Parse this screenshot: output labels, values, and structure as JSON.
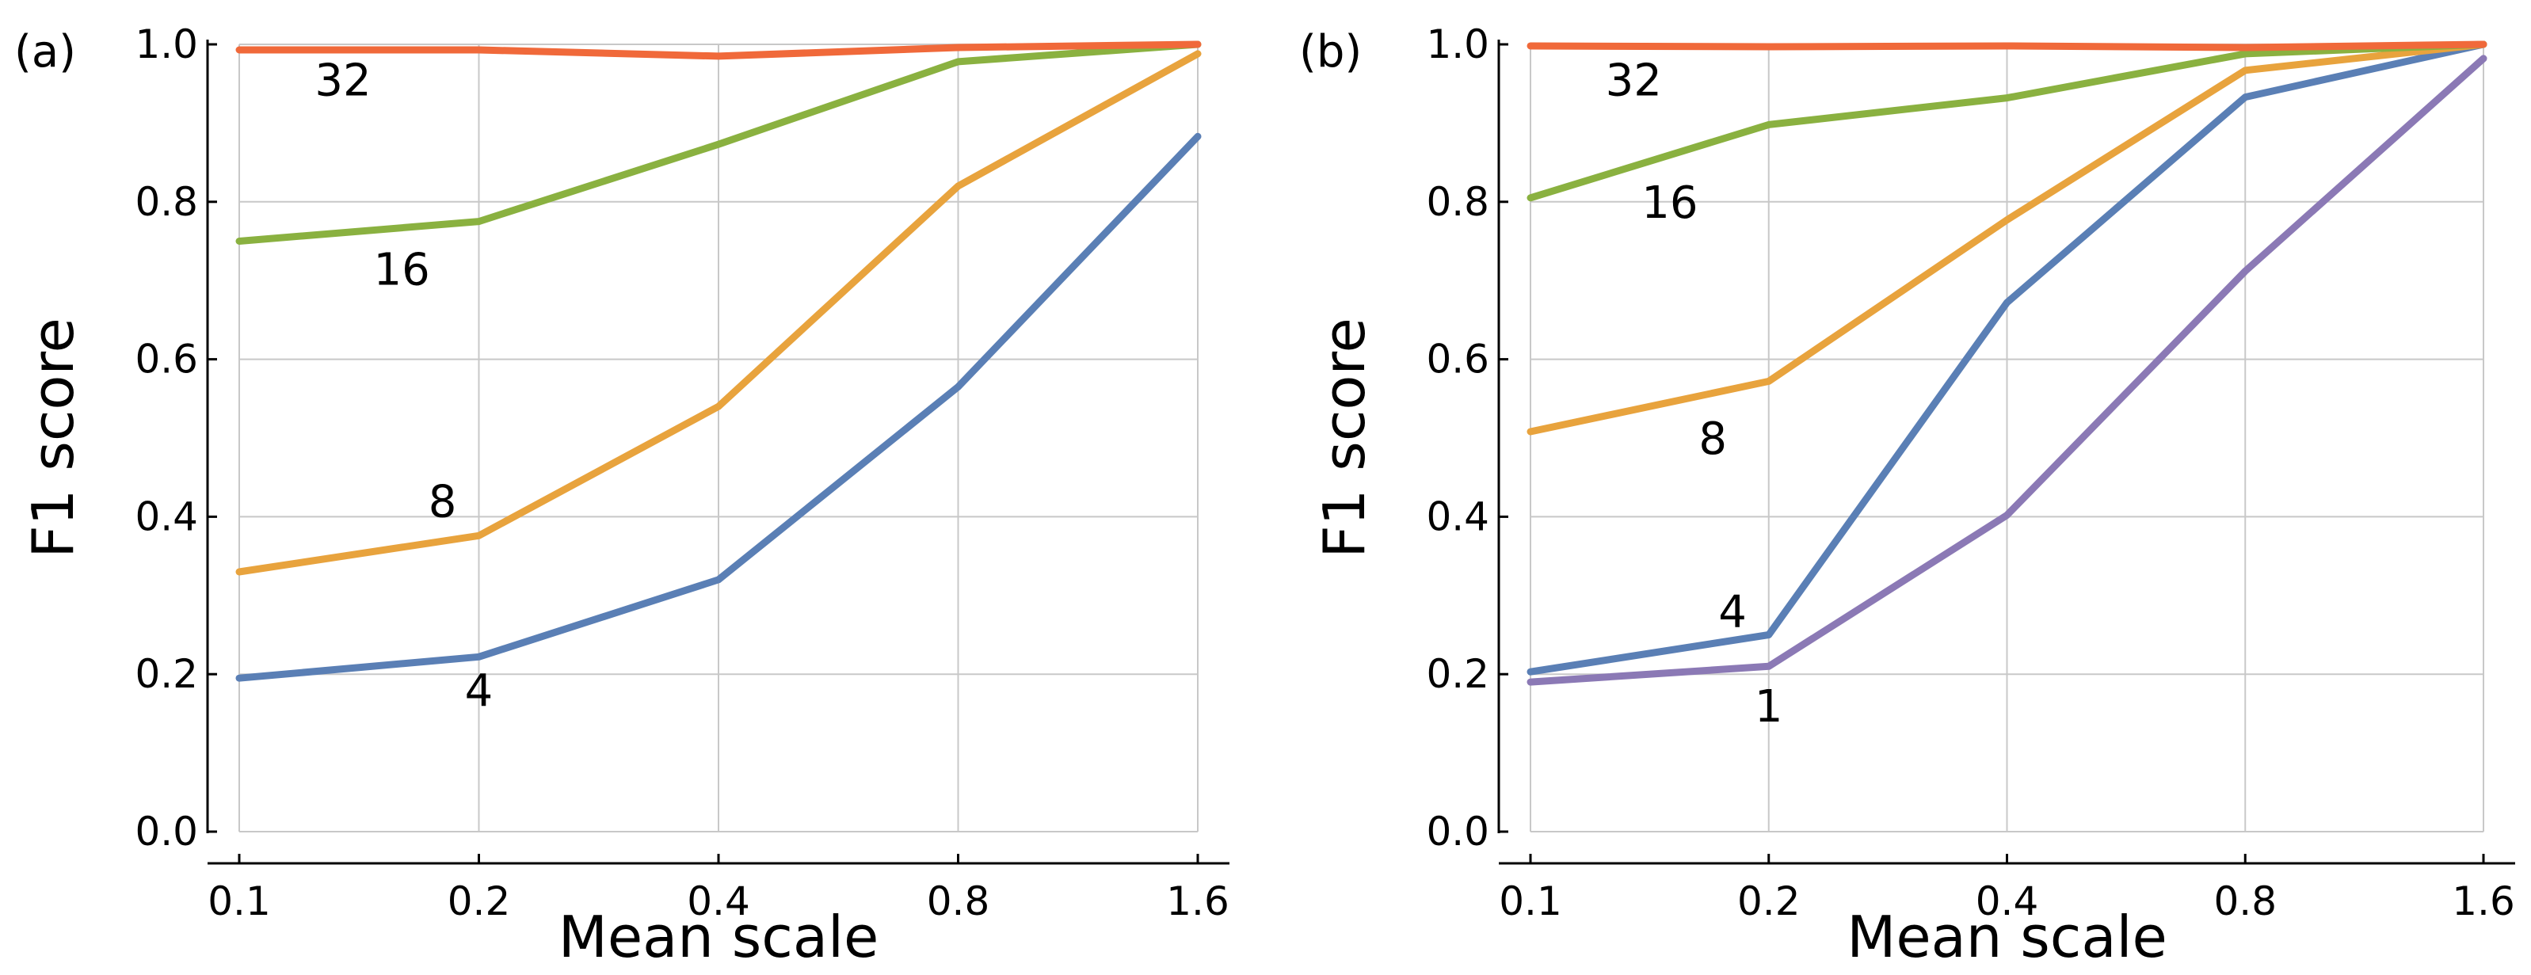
{
  "chart_data": [
    {
      "panel_label": "(a)",
      "type": "line",
      "xlabel": "Mean scale",
      "ylabel": "F1 score",
      "x": [
        0.1,
        0.2,
        0.4,
        0.8,
        1.6
      ],
      "x_tick_labels": [
        "0.1",
        "0.2",
        "0.4",
        "0.8",
        "1.6"
      ],
      "x_scale": "log2",
      "ylim": [
        0.0,
        1.0
      ],
      "y_tick_labels": [
        "0.0",
        "0.2",
        "0.4",
        "0.6",
        "0.8",
        "1.0"
      ],
      "grid": true,
      "series": [
        {
          "name": "4",
          "color": "#5a7fb5",
          "values": [
            0.195,
            0.222,
            0.32,
            0.565,
            0.883
          ],
          "label_at": {
            "x": 0.2,
            "y": 0.18
          }
        },
        {
          "name": "8",
          "color": "#e8a33d",
          "values": [
            0.33,
            0.376,
            0.54,
            0.82,
            0.988
          ],
          "label_at": {
            "x": 0.18,
            "y": 0.42
          }
        },
        {
          "name": "16",
          "color": "#8ab140",
          "values": [
            0.75,
            0.775,
            0.873,
            0.978,
            1.0
          ],
          "label_at": {
            "x": 0.16,
            "y": 0.715
          }
        },
        {
          "name": "32",
          "color": "#f0693a",
          "values": [
            0.993,
            0.993,
            0.985,
            0.996,
            1.0
          ],
          "label_at": {
            "x": 0.135,
            "y": 0.955
          }
        }
      ]
    },
    {
      "panel_label": "(b)",
      "type": "line",
      "xlabel": "Mean scale",
      "ylabel": "F1 score",
      "x": [
        0.1,
        0.2,
        0.4,
        0.8,
        1.6
      ],
      "x_tick_labels": [
        "0.1",
        "0.2",
        "0.4",
        "0.8",
        "1.6"
      ],
      "x_scale": "log2",
      "ylim": [
        0.0,
        1.0
      ],
      "y_tick_labels": [
        "0.0",
        "0.2",
        "0.4",
        "0.6",
        "0.8",
        "1.0"
      ],
      "grid": true,
      "series": [
        {
          "name": "1",
          "color": "#8b79b5",
          "values": [
            0.19,
            0.21,
            0.402,
            0.712,
            0.982
          ],
          "label_at": {
            "x": 0.2,
            "y": 0.16
          }
        },
        {
          "name": "4",
          "color": "#5a7fb5",
          "values": [
            0.203,
            0.25,
            0.672,
            0.933,
            1.0
          ],
          "label_at": {
            "x": 0.18,
            "y": 0.28
          }
        },
        {
          "name": "8",
          "color": "#e8a33d",
          "values": [
            0.508,
            0.572,
            0.777,
            0.967,
            1.0
          ],
          "label_at": {
            "x": 0.17,
            "y": 0.5
          }
        },
        {
          "name": "16",
          "color": "#8ab140",
          "values": [
            0.805,
            0.898,
            0.932,
            0.988,
            1.0
          ],
          "label_at": {
            "x": 0.15,
            "y": 0.8
          }
        },
        {
          "name": "32",
          "color": "#f0693a",
          "values": [
            0.998,
            0.997,
            0.998,
            0.996,
            1.0
          ],
          "label_at": {
            "x": 0.135,
            "y": 0.955
          }
        }
      ]
    }
  ]
}
